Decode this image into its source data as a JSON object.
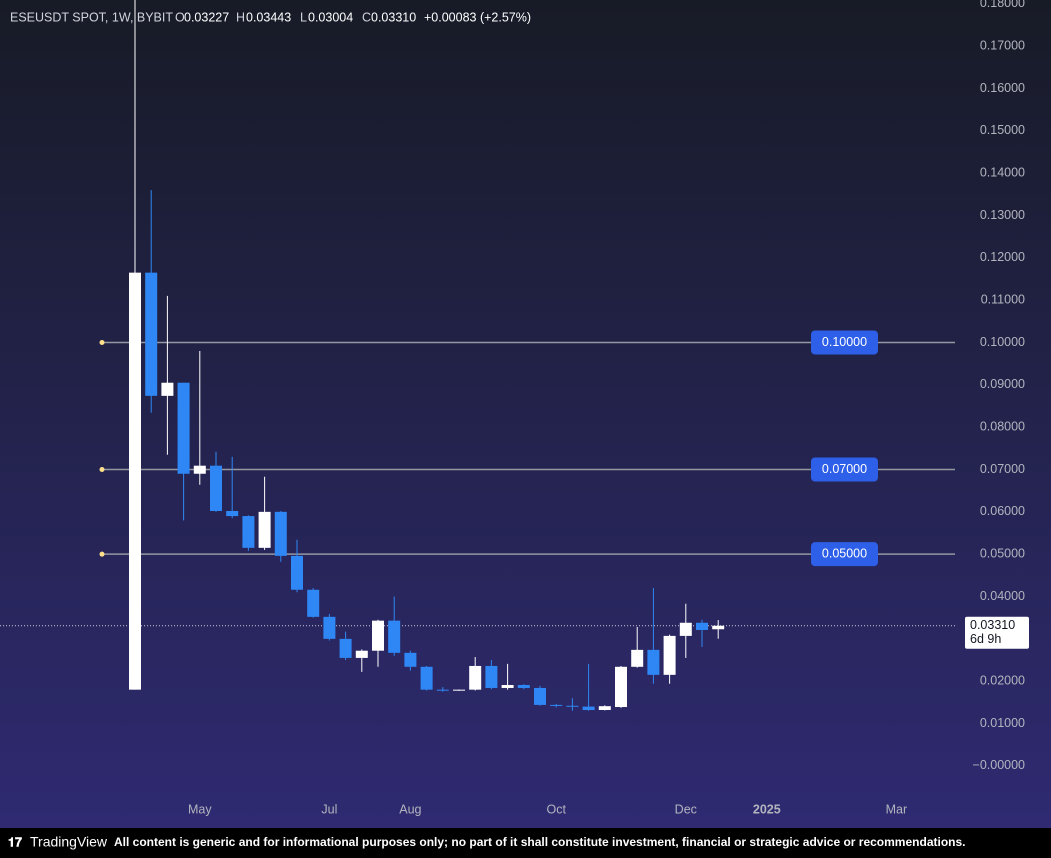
{
  "chart_data": {
    "type": "candlestick",
    "header": {
      "symbol": "ESEUSDT SPOT, 1W, BYBIT",
      "o_label": "O",
      "open": "0.03227",
      "h_label": "H",
      "high": "0.03443",
      "l_label": "L",
      "low": "0.03004",
      "c_label": "C",
      "close": "0.03310",
      "change": "+0.00083 (+2.57%)"
    },
    "categories": [
      null,
      null,
      null,
      null,
      "May",
      null,
      null,
      null,
      null,
      null,
      null,
      null,
      "Jul",
      null,
      null,
      null,
      null,
      "Aug",
      null,
      null,
      null,
      null,
      null,
      null,
      null,
      null,
      "Oct",
      null,
      null,
      null,
      null,
      null,
      null,
      null,
      "Dec",
      null,
      null,
      null,
      null,
      "2025",
      null,
      null,
      null,
      null,
      null,
      null,
      null,
      "Mar",
      null,
      null,
      null,
      null
    ],
    "open": [
      0.018,
      0.1165,
      0.0874,
      0.0905,
      0.069,
      0.0709,
      0.0602,
      0.059,
      0.0515,
      0.06,
      0.0496,
      0.0416,
      0.0352,
      0.03,
      0.0255,
      0.0272,
      0.0343,
      0.0267,
      0.0234,
      0.018,
      0.0178,
      0.018,
      0.0236,
      0.0184,
      0.0191,
      0.0184,
      0.0144,
      0.0142,
      0.014,
      0.0132,
      0.0139,
      0.0234,
      0.0274,
      0.0215,
      0.0307,
      0.0338,
      0.03227,
      null,
      null,
      null,
      null,
      null,
      null,
      null,
      null,
      null,
      null,
      null,
      null,
      null,
      null,
      null
    ],
    "high": [
      0.1809,
      0.136,
      0.111,
      0.0905,
      0.098,
      0.0742,
      0.073,
      0.0592,
      0.0683,
      0.0602,
      0.0534,
      0.042,
      0.0359,
      0.0317,
      0.0275,
      0.0345,
      0.04,
      0.0272,
      0.0236,
      0.0186,
      0.018,
      0.0257,
      0.025,
      0.0241,
      0.0193,
      0.0189,
      0.0146,
      0.016,
      0.0241,
      0.0143,
      0.0236,
      0.0328,
      0.042,
      0.031,
      0.0383,
      0.0345,
      0.03443,
      null,
      null,
      null,
      null,
      null,
      null,
      null,
      null,
      null,
      null,
      null,
      null,
      null,
      null,
      null
    ],
    "low": [
      0.018,
      0.0834,
      0.0735,
      0.058,
      0.0664,
      0.06,
      0.0585,
      0.0508,
      0.051,
      0.0482,
      0.041,
      0.035,
      0.0296,
      0.025,
      0.0222,
      0.0234,
      0.026,
      0.0225,
      0.0178,
      0.0175,
      0.0177,
      0.0178,
      0.0181,
      0.018,
      0.0181,
      0.0142,
      0.0138,
      0.013,
      0.013,
      0.0131,
      0.0137,
      0.0232,
      0.0194,
      0.0194,
      0.0255,
      0.0281,
      0.03004,
      null,
      null,
      null,
      null,
      null,
      null,
      null,
      null,
      null,
      null,
      null,
      null,
      null,
      null,
      null
    ],
    "close": [
      0.1165,
      0.0874,
      0.0905,
      0.069,
      0.0709,
      0.0602,
      0.059,
      0.0515,
      0.06,
      0.0496,
      0.0416,
      0.0352,
      0.03,
      0.0255,
      0.0272,
      0.0343,
      0.0267,
      0.0234,
      0.018,
      0.0178,
      0.018,
      0.0236,
      0.0184,
      0.0191,
      0.0184,
      0.0144,
      0.0142,
      0.014,
      0.0132,
      0.0141,
      0.0234,
      0.0274,
      0.0215,
      0.0307,
      0.0338,
      0.0321,
      0.0331,
      null,
      null,
      null,
      null,
      null,
      null,
      null,
      null,
      null,
      null,
      null,
      null,
      null,
      null,
      null
    ],
    "up_color": "#ffffff",
    "down_color": "#2f87f5",
    "ylim": [
      -0.0057,
      0.1809
    ],
    "yticks": [
      {
        "value": 0,
        "label": "−0.00000"
      },
      {
        "value": 0.01,
        "label": "0.01000"
      },
      {
        "value": 0.02,
        "label": "0.02000"
      },
      {
        "value": 0.03,
        "label": "0.03000"
      },
      {
        "value": 0.04,
        "label": "0.04000"
      },
      {
        "value": 0.05,
        "label": "0.05000"
      },
      {
        "value": 0.06,
        "label": "0.06000"
      },
      {
        "value": 0.07,
        "label": "0.07000"
      },
      {
        "value": 0.08,
        "label": "0.08000"
      },
      {
        "value": 0.09,
        "label": "0.09000"
      },
      {
        "value": 0.1,
        "label": "0.10000"
      },
      {
        "value": 0.11,
        "label": "0.11000"
      },
      {
        "value": 0.12,
        "label": "0.12000"
      },
      {
        "value": 0.13,
        "label": "0.13000"
      },
      {
        "value": 0.14,
        "label": "0.14000"
      },
      {
        "value": 0.15,
        "label": "0.15000"
      },
      {
        "value": 0.16,
        "label": "0.16000"
      },
      {
        "value": 0.17,
        "label": "0.17000"
      },
      {
        "value": 0.18,
        "label": "0.18000"
      }
    ],
    "hlines": [
      {
        "value": 0.1,
        "label": "0.10000"
      },
      {
        "value": 0.07,
        "label": "0.07000"
      },
      {
        "value": 0.05,
        "label": "0.05000"
      }
    ],
    "hline_color": "#9598a1",
    "hline_label_color": "#2d5fe8",
    "last_price": {
      "value": 0.0331,
      "label": "0.03310"
    },
    "countdown": "6d 9h",
    "footer": {
      "brand": "TradingView",
      "disclaimer": "All content is generic and for informational purposes only; no part of it shall constitute investment, financial or strategic advice or recommendations."
    }
  }
}
